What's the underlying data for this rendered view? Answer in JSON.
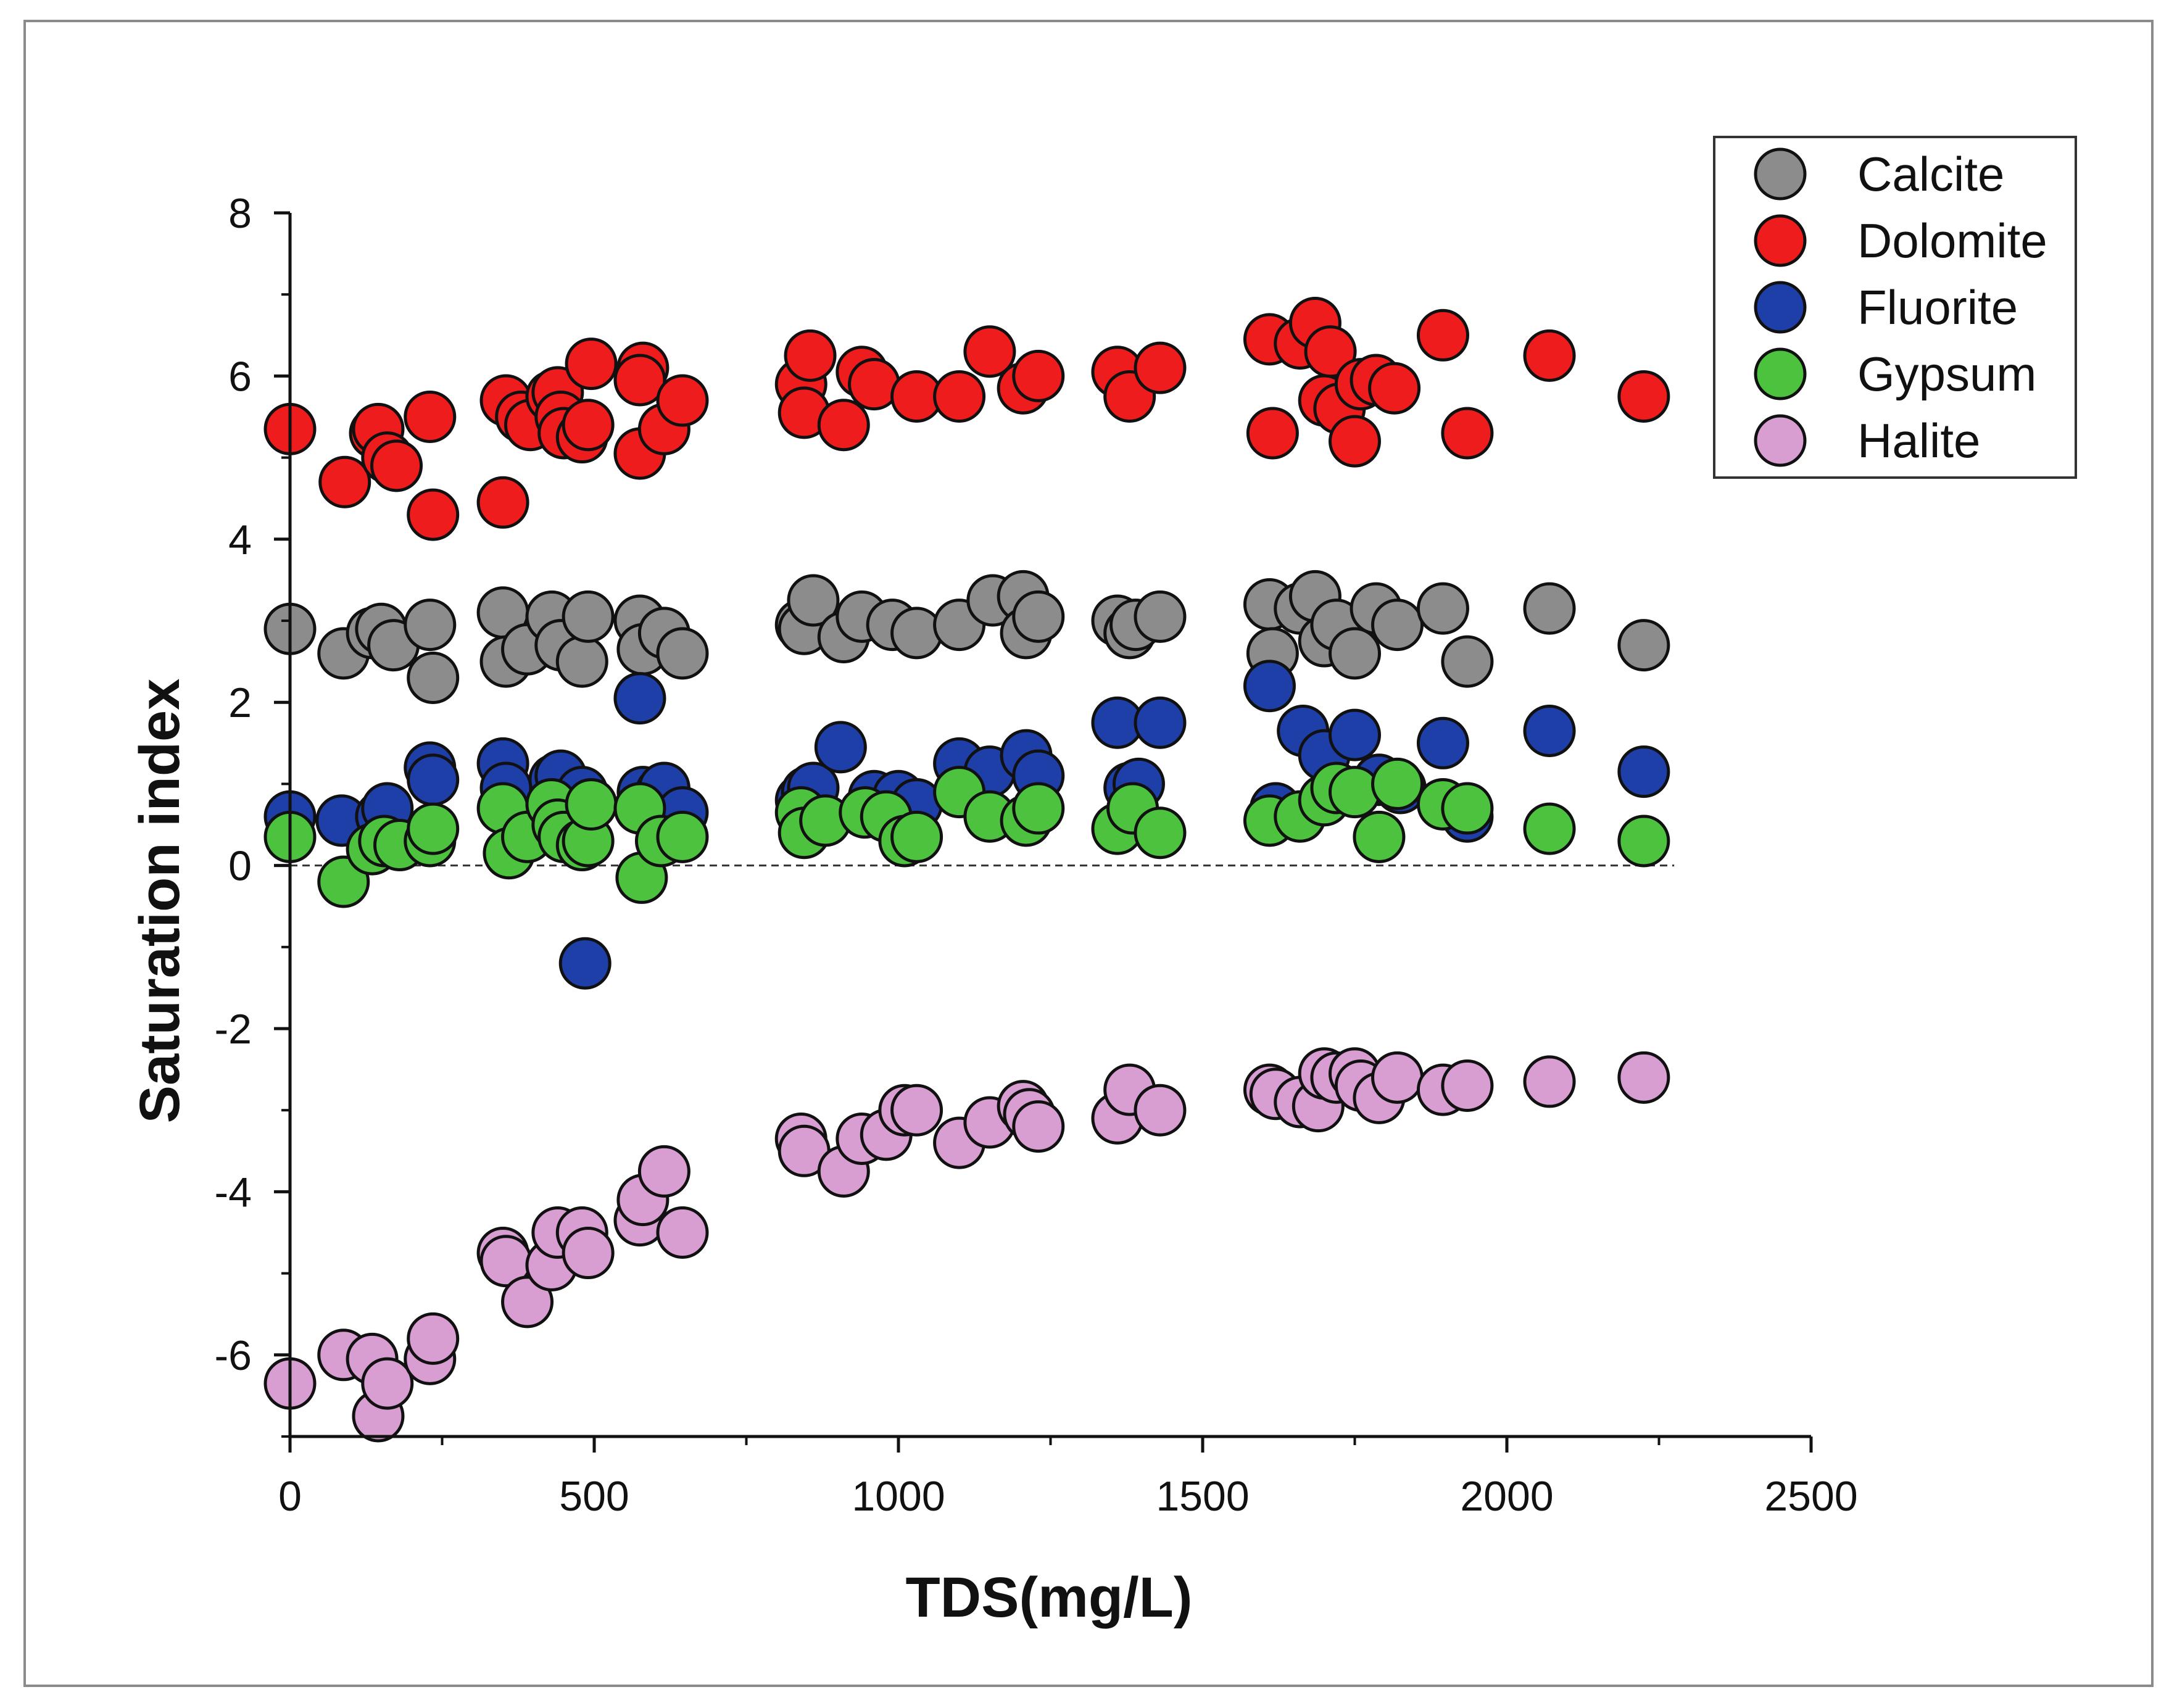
{
  "chart_data": {
    "type": "scatter",
    "title": "",
    "xlabel": "TDS(mg/L)",
    "ylabel": "Saturation index",
    "xlim": [
      0,
      2500
    ],
    "ylim": [
      -7,
      8
    ],
    "x_ticks": [
      0,
      500,
      1000,
      1500,
      2000,
      2500
    ],
    "x_tick_labels": [
      "0",
      "500",
      "1000",
      "1500",
      "2000",
      "2500"
    ],
    "y_ticks": [
      8,
      6,
      4,
      2,
      0,
      -2,
      -4,
      -6
    ],
    "y_tick_labels": [
      "8",
      "6",
      "4",
      "2",
      "0",
      "-2",
      "-4",
      "-6"
    ],
    "reference_line": {
      "y": 0,
      "style": "dashed"
    },
    "legend_position": "top-right",
    "series": [
      {
        "name": "Calcite",
        "color": "#8c8c8c",
        "points": [
          [
            0,
            2.9
          ],
          [
            88,
            2.6
          ],
          [
            135,
            2.85
          ],
          [
            150,
            2.9
          ],
          [
            170,
            2.7
          ],
          [
            230,
            2.95
          ],
          [
            235,
            2.3
          ],
          [
            350,
            3.1
          ],
          [
            355,
            2.5
          ],
          [
            390,
            2.65
          ],
          [
            430,
            3.05
          ],
          [
            445,
            2.7
          ],
          [
            480,
            2.5
          ],
          [
            490,
            3.05
          ],
          [
            575,
            3.0
          ],
          [
            580,
            2.65
          ],
          [
            615,
            2.85
          ],
          [
            645,
            2.6
          ],
          [
            840,
            2.95
          ],
          [
            845,
            2.9
          ],
          [
            860,
            3.25
          ],
          [
            910,
            2.8
          ],
          [
            940,
            3.05
          ],
          [
            990,
            2.95
          ],
          [
            1030,
            2.85
          ],
          [
            1100,
            2.95
          ],
          [
            1155,
            3.25
          ],
          [
            1205,
            3.3
          ],
          [
            1210,
            2.85
          ],
          [
            1230,
            3.05
          ],
          [
            1360,
            3.0
          ],
          [
            1380,
            2.85
          ],
          [
            1390,
            2.95
          ],
          [
            1430,
            3.05
          ],
          [
            1610,
            3.2
          ],
          [
            1615,
            2.6
          ],
          [
            1660,
            3.15
          ],
          [
            1685,
            3.3
          ],
          [
            1700,
            2.75
          ],
          [
            1720,
            2.95
          ],
          [
            1750,
            2.6
          ],
          [
            1785,
            3.15
          ],
          [
            1820,
            2.95
          ],
          [
            1895,
            3.15
          ],
          [
            1935,
            2.5
          ],
          [
            2070,
            3.15
          ],
          [
            2225,
            2.7
          ]
        ]
      },
      {
        "name": "Dolomite",
        "color": "#ee1c1c",
        "points": [
          [
            0,
            5.35
          ],
          [
            90,
            4.7
          ],
          [
            140,
            5.3
          ],
          [
            145,
            5.35
          ],
          [
            160,
            5.0
          ],
          [
            175,
            4.9
          ],
          [
            230,
            5.5
          ],
          [
            235,
            4.3
          ],
          [
            350,
            4.45
          ],
          [
            355,
            5.7
          ],
          [
            380,
            5.5
          ],
          [
            395,
            5.4
          ],
          [
            430,
            5.75
          ],
          [
            440,
            5.8
          ],
          [
            445,
            5.5
          ],
          [
            450,
            5.3
          ],
          [
            480,
            5.25
          ],
          [
            490,
            5.4
          ],
          [
            495,
            6.15
          ],
          [
            575,
            5.05
          ],
          [
            580,
            6.1
          ],
          [
            575,
            5.95
          ],
          [
            615,
            5.35
          ],
          [
            645,
            5.7
          ],
          [
            840,
            5.9
          ],
          [
            845,
            5.55
          ],
          [
            855,
            6.25
          ],
          [
            910,
            5.4
          ],
          [
            940,
            6.05
          ],
          [
            960,
            5.9
          ],
          [
            1030,
            5.75
          ],
          [
            1100,
            5.75
          ],
          [
            1150,
            6.3
          ],
          [
            1205,
            5.85
          ],
          [
            1230,
            6.0
          ],
          [
            1360,
            6.05
          ],
          [
            1380,
            5.75
          ],
          [
            1430,
            6.1
          ],
          [
            1610,
            6.45
          ],
          [
            1615,
            5.3
          ],
          [
            1660,
            6.4
          ],
          [
            1685,
            6.65
          ],
          [
            1700,
            5.7
          ],
          [
            1710,
            6.3
          ],
          [
            1725,
            5.6
          ],
          [
            1760,
            5.9
          ],
          [
            1750,
            5.2
          ],
          [
            1785,
            5.95
          ],
          [
            1815,
            5.85
          ],
          [
            1895,
            6.5
          ],
          [
            1935,
            5.3
          ],
          [
            2070,
            6.25
          ],
          [
            2225,
            5.75
          ]
        ]
      },
      {
        "name": "Fluorite",
        "color": "#1f3fa8",
        "points": [
          [
            0,
            0.6
          ],
          [
            85,
            0.55
          ],
          [
            150,
            0.6
          ],
          [
            160,
            0.7
          ],
          [
            230,
            1.2
          ],
          [
            235,
            1.05
          ],
          [
            350,
            1.25
          ],
          [
            355,
            0.95
          ],
          [
            435,
            1.05
          ],
          [
            445,
            1.1
          ],
          [
            480,
            0.9
          ],
          [
            485,
            -1.2
          ],
          [
            575,
            2.05
          ],
          [
            580,
            0.9
          ],
          [
            610,
            0.9
          ],
          [
            615,
            0.95
          ],
          [
            645,
            0.65
          ],
          [
            840,
            0.8
          ],
          [
            850,
            0.9
          ],
          [
            860,
            0.95
          ],
          [
            905,
            1.45
          ],
          [
            960,
            0.85
          ],
          [
            1000,
            0.85
          ],
          [
            1030,
            0.75
          ],
          [
            1100,
            1.25
          ],
          [
            1150,
            1.15
          ],
          [
            1210,
            1.35
          ],
          [
            1230,
            1.1
          ],
          [
            1360,
            1.75
          ],
          [
            1380,
            0.95
          ],
          [
            1395,
            1.0
          ],
          [
            1430,
            1.75
          ],
          [
            1610,
            2.2
          ],
          [
            1620,
            0.7
          ],
          [
            1665,
            1.65
          ],
          [
            1700,
            1.35
          ],
          [
            1750,
            1.6
          ],
          [
            1790,
            1.05
          ],
          [
            1825,
            0.95
          ],
          [
            1895,
            1.5
          ],
          [
            1935,
            0.6
          ],
          [
            2070,
            1.65
          ],
          [
            2225,
            1.15
          ]
        ]
      },
      {
        "name": "Gypsum",
        "color": "#4cc23e",
        "points": [
          [
            0,
            0.35
          ],
          [
            88,
            -0.2
          ],
          [
            135,
            0.2
          ],
          [
            155,
            0.3
          ],
          [
            180,
            0.25
          ],
          [
            230,
            0.3
          ],
          [
            235,
            0.45
          ],
          [
            350,
            0.7
          ],
          [
            360,
            0.15
          ],
          [
            390,
            0.35
          ],
          [
            430,
            0.75
          ],
          [
            440,
            0.5
          ],
          [
            450,
            0.35
          ],
          [
            480,
            0.25
          ],
          [
            490,
            0.3
          ],
          [
            495,
            0.75
          ],
          [
            575,
            0.7
          ],
          [
            578,
            -0.15
          ],
          [
            610,
            0.3
          ],
          [
            645,
            0.35
          ],
          [
            840,
            0.65
          ],
          [
            845,
            0.4
          ],
          [
            880,
            0.55
          ],
          [
            945,
            0.65
          ],
          [
            980,
            0.6
          ],
          [
            1010,
            0.3
          ],
          [
            1030,
            0.35
          ],
          [
            1100,
            0.9
          ],
          [
            1150,
            0.6
          ],
          [
            1210,
            0.55
          ],
          [
            1230,
            0.7
          ],
          [
            1360,
            0.45
          ],
          [
            1385,
            0.7
          ],
          [
            1430,
            0.4
          ],
          [
            1610,
            0.55
          ],
          [
            1660,
            0.6
          ],
          [
            1700,
            0.8
          ],
          [
            1720,
            0.95
          ],
          [
            1750,
            0.9
          ],
          [
            1790,
            0.35
          ],
          [
            1820,
            1.0
          ],
          [
            1895,
            0.75
          ],
          [
            1935,
            0.7
          ],
          [
            2070,
            0.45
          ],
          [
            2225,
            0.3
          ]
        ]
      },
      {
        "name": "Halite",
        "color": "#d99ed1",
        "points": [
          [
            0,
            -6.35
          ],
          [
            88,
            -6.0
          ],
          [
            135,
            -6.05
          ],
          [
            145,
            -6.75
          ],
          [
            160,
            -6.35
          ],
          [
            230,
            -6.05
          ],
          [
            235,
            -5.8
          ],
          [
            350,
            -4.75
          ],
          [
            355,
            -4.85
          ],
          [
            390,
            -5.35
          ],
          [
            430,
            -4.9
          ],
          [
            440,
            -4.5
          ],
          [
            480,
            -4.5
          ],
          [
            490,
            -4.75
          ],
          [
            575,
            -4.35
          ],
          [
            580,
            -4.1
          ],
          [
            615,
            -3.75
          ],
          [
            645,
            -4.5
          ],
          [
            840,
            -3.35
          ],
          [
            845,
            -3.5
          ],
          [
            910,
            -3.75
          ],
          [
            940,
            -3.35
          ],
          [
            980,
            -3.3
          ],
          [
            1010,
            -3.0
          ],
          [
            1030,
            -3.0
          ],
          [
            1100,
            -3.4
          ],
          [
            1150,
            -3.15
          ],
          [
            1205,
            -2.95
          ],
          [
            1215,
            -3.05
          ],
          [
            1230,
            -3.2
          ],
          [
            1360,
            -3.1
          ],
          [
            1380,
            -2.75
          ],
          [
            1430,
            -3.0
          ],
          [
            1610,
            -2.75
          ],
          [
            1620,
            -2.8
          ],
          [
            1660,
            -2.9
          ],
          [
            1690,
            -2.95
          ],
          [
            1700,
            -2.55
          ],
          [
            1720,
            -2.6
          ],
          [
            1750,
            -2.55
          ],
          [
            1760,
            -2.7
          ],
          [
            1790,
            -2.85
          ],
          [
            1820,
            -2.6
          ],
          [
            1895,
            -2.75
          ],
          [
            1935,
            -2.7
          ],
          [
            2070,
            -2.65
          ],
          [
            2225,
            -2.6
          ]
        ]
      }
    ]
  }
}
